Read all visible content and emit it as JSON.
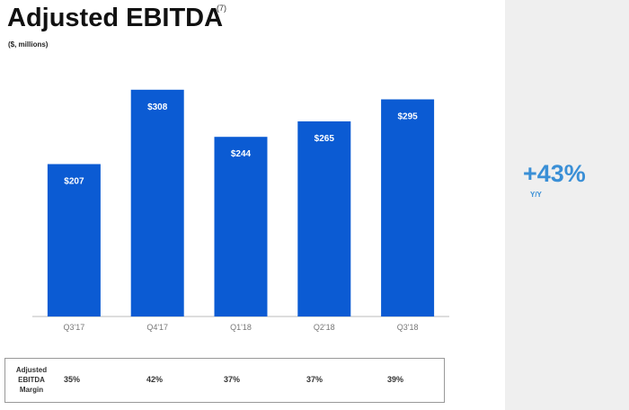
{
  "title": "Adjusted EBITDA",
  "footnote": "(7)",
  "subtitle": "($, millions)",
  "kpi": {
    "value": "+43%",
    "label": "Y/Y"
  },
  "margin_row": {
    "label_lines": [
      "Adjusted",
      "EBITDA",
      "Margin"
    ],
    "values": [
      "35%",
      "42%",
      "37%",
      "37%",
      "39%"
    ]
  },
  "colors": {
    "bar": "#0b5bd3",
    "accent": "#3a8fd6",
    "sidebar": "#efefef"
  },
  "chart_data": {
    "type": "bar",
    "categories": [
      "Q3'17",
      "Q4'17",
      "Q1'18",
      "Q2'18",
      "Q3'18"
    ],
    "values": [
      207,
      308,
      244,
      265,
      295
    ],
    "value_labels": [
      "$207",
      "$308",
      "$244",
      "$265",
      "$295"
    ],
    "title": "Adjusted EBITDA",
    "ylabel": "($, millions)",
    "ylim": [
      0,
      320
    ],
    "grid": false,
    "legend": "none"
  }
}
